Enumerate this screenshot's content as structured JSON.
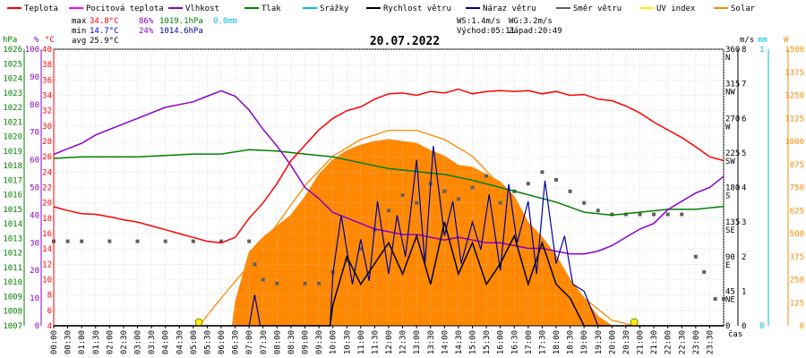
{
  "chart_data": {
    "type": "line",
    "title": "20.07.2022",
    "legend": [
      {
        "label": "Teplota",
        "color": "#ff0000"
      },
      {
        "label": "Pocitová teplota",
        "color": "#ff00ff"
      },
      {
        "label": "Vlhkost",
        "color": "#8800cc"
      },
      {
        "label": "Tlak",
        "color": "#008000"
      },
      {
        "label": "Srážky",
        "color": "#00bbdd"
      },
      {
        "label": "Rychlost větru",
        "color": "#000000"
      },
      {
        "label": "Náraz větru",
        "color": "#000099"
      },
      {
        "label": "Směr větru",
        "color": "#606060"
      },
      {
        "label": "UV index",
        "color": "#ffee00"
      },
      {
        "label": "Solar",
        "color": "#ff8800"
      }
    ],
    "stats": {
      "max_label": "max",
      "max_temp": "34.8°C",
      "max_hum": "86%",
      "max_press": "1019.1hPa",
      "rain": "0.0mm",
      "min_label": "min",
      "min_temp": "14.7°C",
      "min_hum": "24%",
      "min_press": "1014.6hPa",
      "avg_label": "avg",
      "avg_temp": "25.9°C",
      "ws": "WS:1.4m/s",
      "wg": "WG:3.2m/s",
      "sunrise": "Východ:05:11",
      "sunset": "Západ:20:49"
    },
    "axes": {
      "hpa_unit": "hPa",
      "pct_unit": "%",
      "c_unit": "°C",
      "ms_unit": "m/s",
      "mm_unit": "mm",
      "w_unit": "W",
      "x_unit": "čas",
      "hpa_ticks": [
        "1026",
        "1025",
        "1024",
        "1023",
        "1022",
        "1021",
        "1020",
        "1019",
        "1018",
        "1017",
        "1016",
        "1015",
        "1014",
        "1013",
        "1012",
        "1011",
        "1010",
        "1009",
        "1008",
        "1007"
      ],
      "pct_ticks": [
        "100",
        "90",
        "80",
        "70",
        "60",
        "50",
        "40",
        "30",
        "20",
        "10",
        "0"
      ],
      "c_ticks": [
        "40",
        "38",
        "36",
        "34",
        "32",
        "30",
        "28",
        "26",
        "24",
        "22",
        "20",
        "18",
        "16",
        "14",
        "12",
        "10",
        "8",
        "6",
        "4"
      ],
      "dir_ticks": [
        "360 N",
        "315 NW",
        "270 W",
        "225 SW",
        "180 S",
        "135 SE",
        "90 E",
        "45 NE",
        "0"
      ],
      "ms_ticks": [
        "8",
        "7",
        "6",
        "5",
        "4",
        "3",
        "2",
        "1",
        "0"
      ],
      "mm_ticks": [
        "1",
        "0"
      ],
      "w_ticks": [
        "1500",
        "1375",
        "1250",
        "1125",
        "1000",
        "875",
        "750",
        "625",
        "500",
        "375",
        "250",
        "125",
        "0"
      ],
      "x_ticks": [
        "00:00",
        "00:30",
        "01:00",
        "01:30",
        "02:00",
        "02:30",
        "03:00",
        "03:30",
        "04:00",
        "04:30",
        "05:00",
        "05:30",
        "06:00",
        "06:30",
        "07:00",
        "07:30",
        "08:00",
        "08:30",
        "09:00",
        "09:30",
        "10:00",
        "10:30",
        "11:00",
        "11:30",
        "12:00",
        "12:30",
        "13:00",
        "13:30",
        "14:00",
        "14:30",
        "15:00",
        "15:30",
        "16:00",
        "16:30",
        "17:00",
        "17:30",
        "18:00",
        "18:30",
        "19:00",
        "19:30",
        "20:00",
        "20:30",
        "21:00",
        "21:30",
        "22:00",
        "22:30",
        "23:00",
        "23:30"
      ]
    },
    "temperature": {
      "x": [
        0,
        0.5,
        1,
        1.5,
        2,
        2.5,
        3,
        3.5,
        4,
        4.5,
        5,
        5.5,
        6,
        6.5,
        7,
        7.5,
        8,
        8.5,
        9,
        9.5,
        10,
        10.5,
        11,
        11.5,
        12,
        12.5,
        13,
        13.5,
        14,
        14.5,
        15,
        15.5,
        16,
        16.5,
        17,
        17.5,
        18,
        18.5,
        19,
        19.5,
        20,
        20.5,
        21,
        21.5,
        22,
        22.5,
        23,
        23.5,
        24
      ],
      "y": [
        19.5,
        19,
        18.6,
        18.5,
        18.2,
        17.8,
        17.5,
        17,
        16.5,
        16,
        15.5,
        15,
        14.8,
        15.5,
        18,
        20,
        22.5,
        25.5,
        27.5,
        29.5,
        31,
        32,
        32.5,
        33.5,
        34.2,
        34.3,
        34,
        34.5,
        34.3,
        34.8,
        34.2,
        34.5,
        34.6,
        34.5,
        34.6,
        34.2,
        34.5,
        34,
        34.1,
        33.5,
        33.3,
        32.6,
        31.7,
        30.5,
        29.5,
        28.5,
        27.3,
        26,
        25.5
      ]
    },
    "humidity": {
      "x": [
        0,
        0.5,
        1,
        1.5,
        2,
        2.5,
        3,
        3.5,
        4,
        4.5,
        5,
        5.5,
        6,
        6.5,
        7,
        7.5,
        8,
        8.5,
        9,
        9.5,
        10,
        10.5,
        11,
        11.5,
        12,
        12.5,
        13,
        13.5,
        14,
        14.5,
        15,
        15.5,
        16,
        16.5,
        17,
        17.5,
        18,
        18.5,
        19,
        19.5,
        20,
        20.5,
        21,
        21.5,
        22,
        22.5,
        23,
        23.5,
        24
      ],
      "y": [
        62,
        64,
        66,
        69,
        71,
        73,
        75,
        77,
        79,
        80,
        81,
        83,
        85,
        83,
        78,
        71,
        65,
        58,
        50,
        46,
        41,
        39,
        37,
        35,
        34,
        33,
        33,
        32,
        31,
        32,
        31,
        30,
        30,
        29,
        28,
        28,
        27,
        26,
        26,
        27,
        29,
        32,
        35,
        37,
        42,
        45,
        48,
        50,
        54
      ]
    },
    "pressure": {
      "x": [
        0,
        1,
        2,
        3,
        4,
        5,
        6,
        7,
        8,
        9,
        10,
        11,
        12,
        13,
        14,
        15,
        16,
        17,
        18,
        19,
        20,
        21,
        22,
        23,
        24
      ],
      "y": [
        1018.5,
        1018.6,
        1018.6,
        1018.6,
        1018.7,
        1018.8,
        1018.8,
        1019.1,
        1019,
        1018.8,
        1018.6,
        1018.2,
        1017.8,
        1017.6,
        1017.4,
        1017,
        1016.5,
        1016,
        1015.5,
        1014.8,
        1014.6,
        1014.8,
        1015,
        1015,
        1015.2
      ]
    },
    "wind_direction": {
      "x": [
        0,
        0.5,
        1,
        2,
        3,
        4,
        5,
        6,
        7,
        7.2,
        7.5,
        8,
        9,
        9.5,
        10,
        10.5,
        11,
        11.5,
        12,
        12.5,
        13,
        13.5,
        14,
        14.5,
        15,
        15.5,
        16,
        16.5,
        17,
        17.5,
        18,
        18.5,
        19,
        19.5,
        20,
        20.5,
        21,
        21.5,
        22,
        22.5,
        23,
        23.3,
        23.7,
        24
      ],
      "y": [
        110,
        110,
        110,
        110,
        110,
        110,
        110,
        110,
        110,
        80,
        60,
        55,
        55,
        55,
        70,
        85,
        100,
        125,
        150,
        170,
        160,
        185,
        175,
        165,
        180,
        195,
        160,
        175,
        185,
        200,
        190,
        175,
        160,
        150,
        145,
        145,
        145,
        145,
        145,
        145,
        90,
        70,
        35,
        35
      ]
    },
    "wind_speed": {
      "x": [
        0,
        9.9,
        10,
        10.5,
        11,
        11.5,
        12,
        12.5,
        13,
        13.5,
        14,
        14.5,
        15,
        15.5,
        16,
        16.5,
        17,
        17.5,
        18,
        18.5,
        19,
        19.5,
        24
      ],
      "y": [
        0,
        0,
        0.6,
        2,
        1.2,
        1.8,
        2.4,
        1.5,
        2.6,
        1.2,
        3,
        1.5,
        2.4,
        1.2,
        1.8,
        2.6,
        1.2,
        2.4,
        1.2,
        0.8,
        0,
        0,
        0
      ]
    },
    "wind_gust": {
      "x": [
        0,
        7,
        7.2,
        7.4,
        9.9,
        10,
        10.3,
        10.7,
        11,
        11.3,
        11.6,
        12,
        12.3,
        12.6,
        13,
        13.3,
        13.6,
        14,
        14.3,
        14.6,
        15,
        15.3,
        15.6,
        16,
        16.3,
        16.6,
        17,
        17.3,
        17.6,
        18,
        18.3,
        18.6,
        19,
        19.5,
        24
      ],
      "y": [
        0,
        0,
        0.9,
        0,
        0,
        1.5,
        3.2,
        1.2,
        2.5,
        1.3,
        3.6,
        1.5,
        3.2,
        2,
        4.8,
        1.8,
        5.2,
        2.6,
        3.6,
        1.8,
        3,
        2.2,
        3.8,
        1.6,
        4.1,
        2.4,
        3.6,
        1.5,
        4.2,
        1.8,
        2.6,
        1.2,
        1,
        0,
        0
      ]
    },
    "solar": {
      "x": [
        0,
        6.4,
        6.5,
        7,
        7.5,
        8,
        8.5,
        9,
        9.5,
        10,
        10.5,
        11,
        11.5,
        12,
        12.5,
        13,
        13.5,
        14,
        14.5,
        15,
        15.5,
        16,
        16.5,
        17,
        17.5,
        18,
        18.5,
        19,
        19.5,
        20,
        24
      ],
      "y": [
        0,
        0,
        125,
        400,
        480,
        540,
        600,
        700,
        820,
        900,
        950,
        980,
        1000,
        1010,
        1000,
        990,
        950,
        920,
        870,
        860,
        820,
        780,
        700,
        560,
        480,
        380,
        250,
        150,
        50,
        0,
        0
      ]
    },
    "solar_theoretical": {
      "x": [
        5.2,
        6,
        7,
        8,
        9,
        10,
        11,
        12,
        13,
        14,
        15,
        16,
        17,
        18,
        19,
        20,
        20.8
      ],
      "y": [
        0,
        150,
        330,
        550,
        760,
        920,
        1010,
        1060,
        1060,
        1010,
        920,
        760,
        550,
        330,
        150,
        30,
        0
      ]
    },
    "uv_markers": {
      "x": [
        5.2,
        20.8
      ],
      "y": [
        0,
        0
      ]
    }
  }
}
